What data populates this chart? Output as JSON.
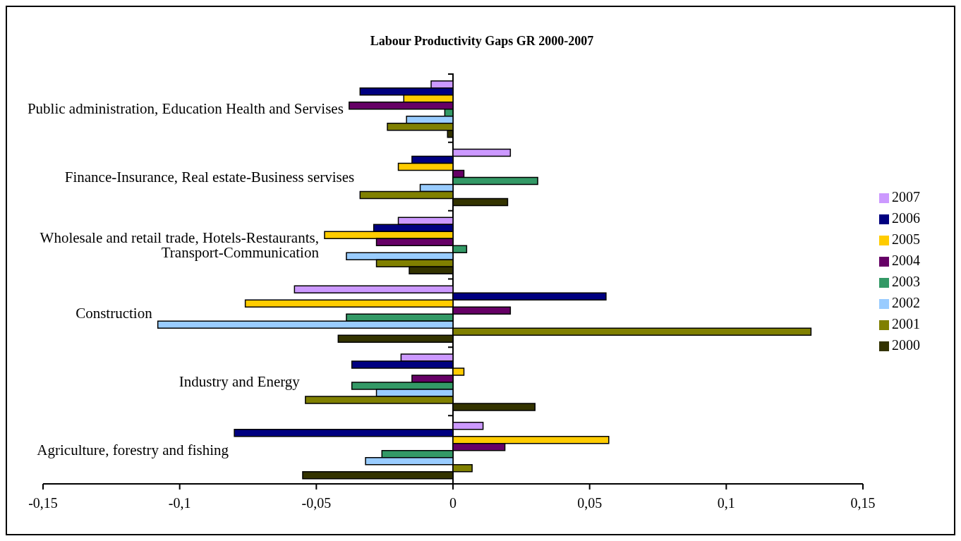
{
  "chart_data": {
    "type": "bar",
    "orientation": "horizontal",
    "title": "Labour Productivity Gaps GR 2000-2007",
    "categories": [
      "Public administration, Education Health and Servises",
      "Finance-Insurance, Real estate-Business servises",
      "Wholesale and retail trade, Hotels-Restaurants, Transport-Communication",
      "Construction",
      "Industry and Energy",
      "Agriculture, forestry and fishing"
    ],
    "series": [
      {
        "name": "2007",
        "color": "#cc99ff",
        "values": [
          -0.008,
          0.021,
          -0.02,
          -0.058,
          -0.019,
          0.011
        ]
      },
      {
        "name": "2006",
        "color": "#000080",
        "values": [
          -0.034,
          -0.015,
          -0.029,
          0.056,
          -0.037,
          -0.08
        ]
      },
      {
        "name": "2005",
        "color": "#ffcc00",
        "values": [
          -0.018,
          -0.02,
          -0.047,
          -0.076,
          0.004,
          0.057
        ]
      },
      {
        "name": "2004",
        "color": "#660066",
        "values": [
          -0.038,
          0.004,
          -0.028,
          0.021,
          -0.015,
          0.019
        ]
      },
      {
        "name": "2003",
        "color": "#339966",
        "values": [
          -0.003,
          0.031,
          0.005,
          -0.039,
          -0.037,
          -0.026
        ]
      },
      {
        "name": "2002",
        "color": "#99ccff",
        "values": [
          -0.017,
          -0.012,
          -0.039,
          -0.108,
          -0.028,
          -0.032
        ]
      },
      {
        "name": "2001",
        "color": "#808000",
        "values": [
          -0.024,
          -0.034,
          -0.028,
          0.131,
          -0.054,
          0.007
        ]
      },
      {
        "name": "2000",
        "color": "#333300",
        "values": [
          -0.002,
          0.02,
          -0.016,
          -0.042,
          0.03,
          -0.055
        ]
      }
    ],
    "xlim": [
      -0.15,
      0.15
    ],
    "xticks": [
      {
        "value": -0.15,
        "label": "-0,15"
      },
      {
        "value": -0.1,
        "label": "-0,1"
      },
      {
        "value": -0.05,
        "label": "-0,05"
      },
      {
        "value": 0,
        "label": "0"
      },
      {
        "value": 0.05,
        "label": "0,05"
      },
      {
        "value": 0.1,
        "label": "0,1"
      },
      {
        "value": 0.15,
        "label": "0,15"
      }
    ],
    "grid": false,
    "legend": "right"
  }
}
